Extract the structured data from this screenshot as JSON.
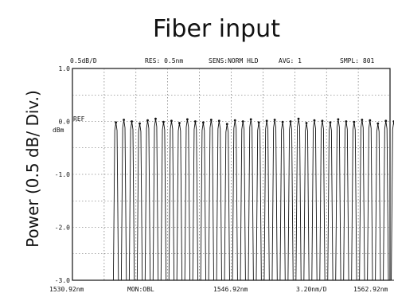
{
  "chart_data": {
    "type": "line",
    "title": "Fiber input",
    "ylabel": "Power (0.5 dB/ Div.)",
    "xlabel": "",
    "header": {
      "scale": "0.5dB/D",
      "res": "RES: 0.5nm",
      "sens": "SENS:NORM HLD",
      "avg": "AVG:   1",
      "smpl": "SMPL: 801"
    },
    "footer": {
      "start": "1530.92nm",
      "mon": "MON:OBL",
      "center": "1546.92nm",
      "span": "3.20nm/D",
      "stop": "1562.92nm"
    },
    "ref_marker": "REF",
    "y_unit": "dBm",
    "y_ticks": [
      "1.0",
      "0.0",
      "-1.0",
      "-2.0",
      "-3.0"
    ],
    "xlim": [
      1530.92,
      1562.92
    ],
    "ylim": [
      -3.0,
      1.0
    ],
    "grid": true,
    "series": [
      {
        "channel_count": 40,
        "first_channel_nm": 1535.3,
        "channel_spacing_nm": 0.8,
        "peak_dB": 0.0,
        "floor_dB": -3.0,
        "values_peak_dB": [
          -0.02,
          0.03,
          0.0,
          -0.04,
          0.02,
          0.05,
          -0.01,
          0.01,
          -0.03,
          0.04,
          0.0,
          -0.02,
          0.03,
          0.01,
          -0.05,
          0.02,
          0.0,
          0.04,
          -0.02,
          0.01,
          0.03,
          -0.01,
          0.0,
          0.05,
          -0.03,
          0.02,
          0.01,
          -0.02,
          0.04,
          0.0,
          -0.01,
          0.03,
          0.02,
          -0.04,
          0.01,
          0.0,
          0.02,
          -0.02,
          0.03,
          0.01
        ]
      }
    ]
  }
}
